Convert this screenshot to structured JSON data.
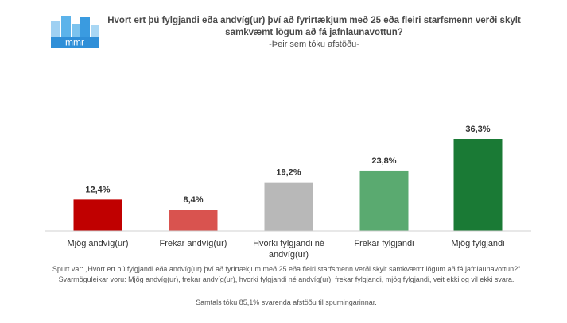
{
  "logo": {
    "text": "mmr",
    "color": "#2f8fd8"
  },
  "chart_data": {
    "type": "bar",
    "title": "Hvort ert þú fylgjandi eða andvíg(ur) því að fyrirtækjum með 25 eða fleiri starfsmenn verði skylt samkvæmt lögum að fá jafnlaunavottun?",
    "subtitle": "-Þeir sem tóku afstöðu-",
    "categories": [
      "Mjög andvíg(ur)",
      "Frekar andvíg(ur)",
      "Hvorki fylgjandi né andvíg(ur)",
      "Frekar fylgjandi",
      "Mjög fylgjandi"
    ],
    "category_lines": [
      [
        "Mjög andvíg(ur)"
      ],
      [
        "Frekar andvíg(ur)"
      ],
      [
        "Hvorki fylgjandi né",
        "andvíg(ur)"
      ],
      [
        "Frekar fylgjandi"
      ],
      [
        "Mjög fylgjandi"
      ]
    ],
    "values": [
      12.4,
      8.4,
      19.2,
      23.8,
      36.3
    ],
    "value_labels": [
      "12,4%",
      "8,4%",
      "19,2%",
      "23,8%",
      "36,3%"
    ],
    "colors": [
      "#c00000",
      "#d9534f",
      "#b8b8b8",
      "#5aaa70",
      "#1a7a35"
    ],
    "xlabel": "",
    "ylabel": "",
    "ylim": [
      0,
      36.3
    ],
    "grid": false,
    "legend": "none"
  },
  "footnote": {
    "line1": "Spurt var: „Hvort ert þú fylgjandi eða andvíg(ur) því að fyrirtækjum með 25 eða fleiri starfsmenn verði skylt samkvæmt lögum að fá jafnlaunavottun?“ Svarmöguleikar voru: Mjög andvíg(ur), frekar andvíg(ur), hvorki fylgjandi né andvíg(ur), frekar fylgjandi, mjög fylgjandi, veit ekki og vil ekki svara.",
    "line2": "Samtals tóku 85,1% svarenda afstöðu til spurningarinnar."
  }
}
